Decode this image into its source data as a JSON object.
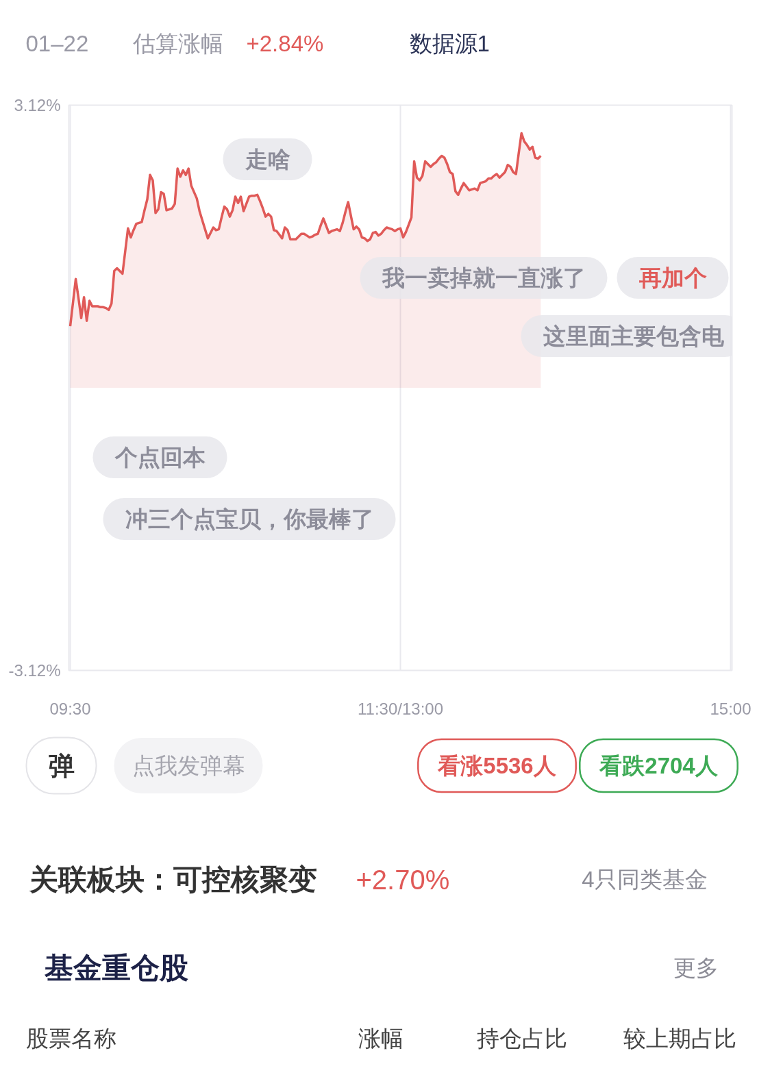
{
  "chart_data": {
    "type": "area",
    "categories": [
      "09:30",
      null,
      null,
      null,
      null,
      null,
      null,
      null,
      null,
      null,
      null,
      null,
      null,
      null,
      null,
      null,
      null,
      null,
      null,
      null,
      null,
      null,
      null,
      null,
      null,
      null,
      null,
      null,
      null,
      null,
      null,
      null,
      null,
      null,
      null,
      null,
      null,
      null,
      null,
      null,
      null,
      null,
      null,
      null,
      null,
      null,
      null,
      null,
      null,
      null,
      null,
      null,
      null,
      null,
      null,
      null,
      null,
      null,
      null,
      null,
      null,
      null,
      null,
      null,
      null,
      null,
      null,
      null,
      null,
      null,
      null,
      null,
      null,
      null,
      null,
      null,
      null,
      null,
      null,
      null,
      null,
      null,
      null,
      null,
      null,
      null,
      null,
      null,
      null,
      null,
      null,
      null,
      null,
      null,
      null,
      null,
      null,
      null,
      null,
      null,
      null,
      null,
      null,
      null,
      null,
      null,
      null,
      null,
      null,
      null,
      null,
      null,
      null,
      null,
      null,
      null,
      null,
      null,
      null,
      null,
      "11:30/13:00",
      null,
      null,
      null,
      null,
      null,
      null,
      null,
      null,
      null,
      null,
      null,
      null,
      null,
      null,
      null,
      null,
      null,
      null,
      null,
      null,
      null,
      null,
      null,
      null,
      null,
      null,
      null,
      null,
      null,
      null,
      null,
      null,
      null,
      null,
      null,
      null,
      null,
      null,
      null,
      null,
      null,
      null,
      null,
      null,
      null,
      null,
      null,
      null,
      null,
      null,
      null,
      null,
      null,
      null,
      null,
      null,
      null,
      null,
      null,
      null,
      null,
      null,
      null,
      null,
      null,
      null,
      null,
      null,
      null,
      null,
      null,
      null,
      null,
      null,
      null,
      null,
      null,
      null,
      null,
      null,
      null,
      null,
      null,
      null,
      null,
      null,
      null,
      null,
      null,
      null,
      null,
      null,
      null,
      null,
      null,
      null,
      null,
      null,
      null,
      null,
      null,
      null,
      null,
      null,
      null,
      null,
      null,
      null,
      null,
      null,
      null,
      null,
      null,
      null,
      null,
      null,
      null,
      null,
      null,
      "15:00"
    ],
    "series": [
      {
        "color": "#e05a58",
        "values": [
          0.68,
          0.94,
          1.2,
          0.99,
          0.77,
          1.0,
          0.74,
          0.96,
          0.9,
          0.9,
          0.9,
          0.89,
          0.89,
          0.88,
          0.86,
          0.93,
          1.29,
          1.32,
          1.29,
          1.26,
          1.51,
          1.76,
          1.66,
          1.74,
          1.81,
          1.82,
          1.83,
          1.96,
          2.08,
          2.35,
          2.29,
          1.93,
          1.97,
          2.16,
          2.14,
          1.96,
          1.97,
          1.98,
          2.03,
          2.42,
          2.33,
          2.4,
          2.35,
          2.42,
          2.23,
          2.16,
          2.09,
          1.95,
          1.85,
          1.75,
          1.65,
          1.71,
          1.77,
          1.74,
          1.75,
          1.88,
          2.0,
          1.97,
          1.89,
          1.96,
          2.11,
          2.04,
          2.11,
          1.95,
          2.03,
          2.11,
          2.12,
          2.12,
          2.13,
          2.06,
          1.98,
          1.89,
          1.92,
          1.89,
          1.74,
          1.73,
          1.69,
          1.65,
          1.77,
          1.74,
          1.64,
          1.64,
          1.64,
          1.67,
          1.7,
          1.7,
          1.68,
          1.66,
          1.67,
          1.69,
          1.7,
          1.79,
          1.87,
          1.79,
          1.71,
          1.73,
          1.74,
          1.75,
          1.73,
          1.82,
          1.94,
          2.05,
          1.9,
          1.75,
          1.78,
          1.75,
          1.66,
          1.65,
          1.62,
          1.64,
          1.71,
          1.72,
          1.68,
          1.7,
          1.74,
          1.77,
          1.76,
          1.75,
          1.73,
          1.75,
          1.76,
          1.66,
          1.72,
          1.8,
          1.88,
          2.5,
          2.32,
          2.29,
          2.34,
          2.5,
          2.47,
          2.44,
          2.47,
          2.49,
          2.53,
          2.56,
          2.54,
          2.47,
          2.38,
          2.36,
          2.17,
          2.13,
          2.2,
          2.26,
          2.22,
          2.18,
          2.19,
          2.2,
          2.18,
          2.26,
          2.27,
          2.28,
          2.31,
          2.31,
          2.34,
          2.36,
          2.32,
          2.35,
          2.38,
          2.46,
          2.44,
          2.38,
          2.36,
          2.59,
          2.81,
          2.72,
          2.68,
          2.63,
          2.66,
          2.54,
          2.53,
          2.56,
          null,
          null,
          null,
          null,
          null,
          null,
          null,
          null,
          null,
          null,
          null,
          null,
          null,
          null,
          null,
          null,
          null,
          null,
          null,
          null,
          null,
          null,
          null,
          null,
          null,
          null,
          null,
          null,
          null,
          null,
          null,
          null,
          null,
          null,
          null,
          null,
          null,
          null,
          null,
          null,
          null,
          null,
          null,
          null,
          null,
          null,
          null,
          null,
          null,
          null,
          null,
          null,
          null,
          null,
          null,
          null,
          null,
          null,
          null,
          null,
          null,
          null,
          null,
          null,
          null,
          null,
          null,
          null,
          null
        ]
      }
    ],
    "ylim": [
      -3.12,
      3.12
    ],
    "yticks": [
      {
        "value": -3.12,
        "label": "-3.12%"
      },
      {
        "value": 3.12,
        "label": "3.12%"
      }
    ],
    "grid": "x",
    "annotations": [
      "01–22",
      "估算涨幅",
      "+2.84%",
      "数据源1",
      "走啥",
      "我一卖掉就一直涨了",
      "再加个",
      "这里面主要包含电",
      "个点回本",
      "冲三个点宝贝，你最棒了",
      "弹",
      "点我发弹幕",
      "看涨5536人",
      "看跌2704人",
      "关联板块：可控核聚变",
      "+2.70%",
      "4只同类基金",
      "基金重仓股",
      "更多",
      "股票名称",
      "涨幅",
      "持仓占比",
      "较上期占比"
    ]
  }
}
